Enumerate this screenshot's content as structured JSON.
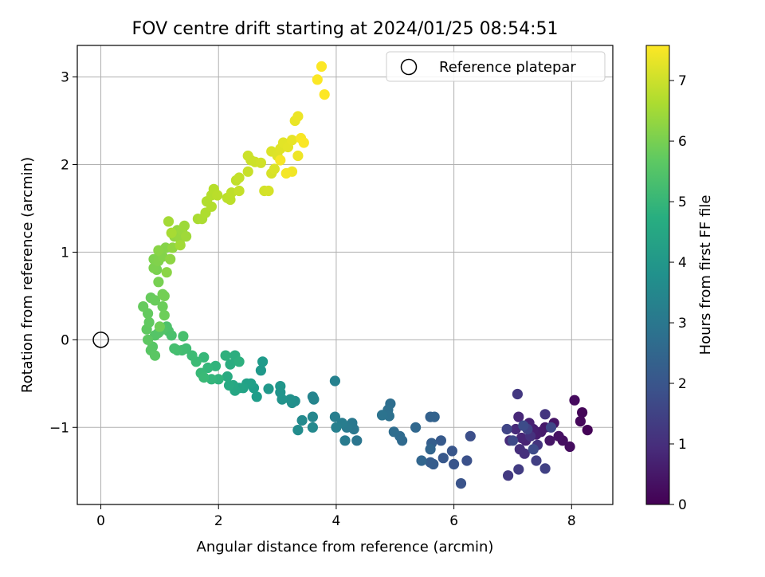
{
  "chart_data": {
    "type": "scatter",
    "title": "FOV centre drift starting at 2024/01/25 08:54:51",
    "xlabel": "Angular distance from reference (arcmin)",
    "ylabel": "Rotation from reference (arcmin)",
    "xlim": [
      -0.4,
      8.7
    ],
    "ylim": [
      -1.88,
      3.36
    ],
    "xticks": [
      0,
      2,
      4,
      6,
      8
    ],
    "xtick_labels": [
      "0",
      "2",
      "4",
      "6",
      "8"
    ],
    "yticks": [
      -1,
      0,
      1,
      2,
      3
    ],
    "ytick_labels": [
      "−1",
      "0",
      "1",
      "2",
      "3"
    ],
    "grid": true,
    "legend": {
      "position": "top-right",
      "entries": [
        "Reference platepar"
      ]
    },
    "reference_point": {
      "x": 0,
      "y": 0,
      "label": "Reference platepar"
    },
    "colorbar": {
      "label": "Hours from first FF file",
      "colormap": "viridis",
      "range": [
        0,
        7.58
      ],
      "ticks": [
        0,
        1,
        2,
        3,
        4,
        5,
        6,
        7
      ],
      "tick_labels": [
        "0",
        "1",
        "2",
        "3",
        "4",
        "5",
        "6",
        "7"
      ]
    },
    "points_note_hours": "each point: [x arcmin, y arcmin, hours]",
    "points": [
      [
        8.27,
        -1.03,
        0.05
      ],
      [
        8.18,
        -0.83,
        0.1
      ],
      [
        8.15,
        -0.93,
        0.15
      ],
      [
        8.05,
        -0.69,
        0.2
      ],
      [
        7.97,
        -1.22,
        0.25
      ],
      [
        7.85,
        -1.15,
        0.3
      ],
      [
        7.78,
        -1.1,
        0.35
      ],
      [
        7.7,
        -0.95,
        0.4
      ],
      [
        7.63,
        -1.15,
        0.45
      ],
      [
        7.55,
        -1.0,
        0.5
      ],
      [
        7.48,
        -1.05,
        0.55
      ],
      [
        7.4,
        -1.08,
        0.6
      ],
      [
        7.35,
        -1.02,
        0.65
      ],
      [
        7.28,
        -0.95,
        0.7
      ],
      [
        7.22,
        -1.15,
        0.75
      ],
      [
        7.15,
        -1.12,
        0.8
      ],
      [
        7.1,
        -0.88,
        0.85
      ],
      [
        7.05,
        -1.02,
        0.9
      ],
      [
        6.95,
        -1.15,
        0.95
      ],
      [
        7.12,
        -1.25,
        1.0
      ],
      [
        7.2,
        -1.3,
        1.05
      ],
      [
        7.3,
        -1.1,
        1.1
      ],
      [
        7.42,
        -1.2,
        1.15
      ],
      [
        7.55,
        -0.85,
        1.2
      ],
      [
        7.08,
        -0.62,
        1.25
      ],
      [
        6.92,
        -1.55,
        1.3
      ],
      [
        7.1,
        -1.48,
        1.35
      ],
      [
        7.4,
        -1.38,
        1.4
      ],
      [
        7.55,
        -1.47,
        1.45
      ],
      [
        7.25,
        -1.02,
        1.5
      ],
      [
        6.9,
        -1.02,
        1.55
      ],
      [
        7.65,
        -1.0,
        1.6
      ],
      [
        7.0,
        -1.15,
        1.65
      ],
      [
        7.35,
        -1.25,
        1.7
      ],
      [
        7.18,
        -0.98,
        1.75
      ],
      [
        6.28,
        -1.1,
        1.82
      ],
      [
        6.22,
        -1.38,
        1.88
      ],
      [
        6.12,
        -1.64,
        1.93
      ],
      [
        6.0,
        -1.42,
        1.98
      ],
      [
        5.97,
        -1.27,
        2.03
      ],
      [
        5.82,
        -1.35,
        2.08
      ],
      [
        5.78,
        -1.15,
        2.13
      ],
      [
        5.65,
        -1.42,
        2.18
      ],
      [
        5.6,
        -1.4,
        2.23
      ],
      [
        5.62,
        -1.18,
        2.28
      ],
      [
        5.6,
        -0.88,
        2.33
      ],
      [
        5.67,
        -0.88,
        2.38
      ],
      [
        5.6,
        -1.25,
        2.43
      ],
      [
        5.45,
        -1.38,
        2.48
      ],
      [
        5.35,
        -1.0,
        2.53
      ],
      [
        5.12,
        -1.15,
        2.58
      ],
      [
        5.08,
        -1.1,
        2.63
      ],
      [
        4.98,
        -1.05,
        2.68
      ],
      [
        4.92,
        -0.73,
        2.73
      ],
      [
        4.88,
        -0.8,
        2.78
      ],
      [
        4.9,
        -0.87,
        2.83
      ],
      [
        4.78,
        -0.86,
        2.88
      ],
      [
        4.35,
        -1.15,
        2.95
      ],
      [
        4.3,
        -1.02,
        3.0
      ],
      [
        4.27,
        -0.95,
        3.05
      ],
      [
        4.18,
        -1.0,
        3.1
      ],
      [
        4.15,
        -1.15,
        3.15
      ],
      [
        4.1,
        -0.95,
        3.2
      ],
      [
        3.98,
        -0.88,
        3.25
      ],
      [
        4.0,
        -1.0,
        3.3
      ],
      [
        3.98,
        -0.47,
        3.35
      ],
      [
        3.6,
        -0.65,
        3.42
      ],
      [
        3.62,
        -0.68,
        3.47
      ],
      [
        3.6,
        -0.88,
        3.52
      ],
      [
        3.6,
        -1.0,
        3.57
      ],
      [
        3.42,
        -0.92,
        3.62
      ],
      [
        3.35,
        -1.03,
        3.67
      ],
      [
        3.3,
        -0.7,
        3.72
      ],
      [
        3.25,
        -0.72,
        3.77
      ],
      [
        3.22,
        -0.68,
        3.82
      ],
      [
        3.08,
        -0.68,
        3.87
      ],
      [
        3.05,
        -0.6,
        3.92
      ],
      [
        3.05,
        -0.53,
        3.97
      ],
      [
        2.85,
        -0.56,
        4.02
      ],
      [
        2.72,
        -0.35,
        4.07
      ],
      [
        2.75,
        -0.25,
        4.12
      ],
      [
        2.65,
        -0.65,
        4.17
      ],
      [
        2.6,
        -0.55,
        4.22
      ],
      [
        2.55,
        -0.5,
        4.27
      ],
      [
        2.48,
        -0.5,
        4.32
      ],
      [
        2.42,
        -0.55,
        4.37
      ],
      [
        2.35,
        -0.55,
        4.42
      ],
      [
        2.28,
        -0.58,
        4.47
      ],
      [
        2.25,
        -0.52,
        4.52
      ],
      [
        2.18,
        -0.52,
        4.57
      ],
      [
        2.15,
        -0.42,
        4.62
      ],
      [
        2.2,
        -0.28,
        4.67
      ],
      [
        2.28,
        -0.18,
        4.72
      ],
      [
        2.35,
        -0.25,
        4.77
      ],
      [
        2.12,
        -0.18,
        4.82
      ],
      [
        2.0,
        -0.45,
        4.87
      ],
      [
        1.95,
        -0.3,
        4.92
      ],
      [
        1.88,
        -0.45,
        4.97
      ],
      [
        1.82,
        -0.32,
        5.02
      ],
      [
        1.75,
        -0.2,
        5.07
      ],
      [
        1.7,
        -0.38,
        5.1
      ],
      [
        1.75,
        -0.43,
        5.13
      ],
      [
        1.62,
        -0.25,
        5.16
      ],
      [
        1.55,
        -0.18,
        5.19
      ],
      [
        1.45,
        -0.1,
        5.22
      ],
      [
        1.38,
        -0.12,
        5.25
      ],
      [
        1.3,
        -0.12,
        5.28
      ],
      [
        1.25,
        -0.1,
        5.31
      ],
      [
        1.4,
        0.04,
        5.34
      ],
      [
        1.2,
        0.05,
        5.37
      ],
      [
        1.15,
        0.1,
        5.4
      ],
      [
        1.12,
        0.15,
        5.43
      ],
      [
        1.05,
        0.12,
        5.46
      ],
      [
        0.98,
        0.08,
        5.49
      ],
      [
        0.92,
        0.05,
        5.52
      ],
      [
        0.88,
        -0.08,
        5.55
      ],
      [
        0.85,
        -0.12,
        5.58
      ],
      [
        0.92,
        -0.18,
        5.61
      ],
      [
        0.8,
        0.0,
        5.64
      ],
      [
        0.78,
        0.12,
        5.67
      ],
      [
        0.82,
        0.2,
        5.7
      ],
      [
        0.8,
        0.3,
        5.73
      ],
      [
        0.72,
        0.38,
        5.76
      ],
      [
        0.85,
        0.48,
        5.79
      ],
      [
        0.92,
        0.45,
        5.82
      ],
      [
        1.05,
        0.38,
        5.85
      ],
      [
        1.08,
        0.28,
        5.88
      ],
      [
        1.0,
        0.15,
        5.91
      ],
      [
        1.05,
        0.52,
        5.94
      ],
      [
        1.08,
        0.5,
        5.97
      ],
      [
        0.98,
        0.66,
        6.0
      ],
      [
        0.95,
        0.8,
        6.03
      ],
      [
        0.9,
        0.82,
        6.06
      ],
      [
        0.9,
        0.92,
        6.09
      ],
      [
        0.98,
        0.9,
        6.12
      ],
      [
        1.05,
        0.95,
        6.15
      ],
      [
        1.1,
        1.05,
        6.18
      ],
      [
        0.98,
        1.02,
        6.21
      ],
      [
        1.12,
        0.77,
        6.24
      ],
      [
        1.18,
        0.92,
        6.27
      ],
      [
        1.22,
        1.05,
        6.3
      ],
      [
        1.25,
        1.18,
        6.33
      ],
      [
        1.3,
        1.25,
        6.36
      ],
      [
        1.35,
        1.15,
        6.39
      ],
      [
        1.38,
        1.25,
        6.42
      ],
      [
        1.42,
        1.3,
        6.45
      ],
      [
        1.45,
        1.18,
        6.48
      ],
      [
        1.35,
        1.08,
        6.51
      ],
      [
        1.15,
        1.35,
        6.54
      ],
      [
        1.2,
        1.22,
        6.57
      ],
      [
        1.65,
        1.38,
        6.6
      ],
      [
        1.72,
        1.38,
        6.63
      ],
      [
        1.78,
        1.45,
        6.66
      ],
      [
        1.8,
        1.58,
        6.69
      ],
      [
        1.88,
        1.65,
        6.72
      ],
      [
        1.92,
        1.72,
        6.75
      ],
      [
        1.98,
        1.65,
        6.78
      ],
      [
        2.15,
        1.62,
        6.81
      ],
      [
        2.22,
        1.68,
        6.84
      ],
      [
        2.3,
        1.82,
        6.87
      ],
      [
        2.35,
        1.85,
        6.9
      ],
      [
        2.35,
        1.7,
        6.93
      ],
      [
        2.5,
        1.92,
        6.96
      ],
      [
        2.55,
        2.05,
        6.99
      ],
      [
        2.62,
        2.03,
        7.02
      ],
      [
        2.72,
        2.02,
        7.05
      ],
      [
        2.78,
        1.7,
        7.08
      ],
      [
        2.85,
        1.7,
        7.11
      ],
      [
        2.9,
        1.9,
        7.14
      ],
      [
        2.95,
        1.95,
        7.17
      ],
      [
        3.0,
        2.1,
        7.2
      ],
      [
        3.05,
        2.18,
        7.23
      ],
      [
        3.1,
        2.25,
        7.26
      ],
      [
        3.18,
        2.2,
        7.29
      ],
      [
        3.25,
        2.28,
        7.32
      ],
      [
        3.3,
        2.5,
        7.35
      ],
      [
        3.35,
        2.55,
        7.38
      ],
      [
        3.35,
        2.1,
        7.41
      ],
      [
        3.25,
        1.92,
        7.44
      ],
      [
        3.15,
        1.9,
        7.47
      ],
      [
        3.05,
        2.05,
        7.5
      ],
      [
        3.4,
        2.3,
        7.52
      ],
      [
        3.45,
        2.25,
        7.54
      ],
      [
        3.68,
        2.97,
        7.56
      ],
      [
        3.75,
        3.12,
        7.57
      ],
      [
        3.8,
        2.8,
        7.58
      ],
      [
        2.5,
        2.1,
        6.99
      ],
      [
        2.9,
        2.15,
        7.18
      ],
      [
        2.2,
        1.6,
        6.82
      ],
      [
        1.88,
        1.52,
        6.7
      ]
    ]
  }
}
